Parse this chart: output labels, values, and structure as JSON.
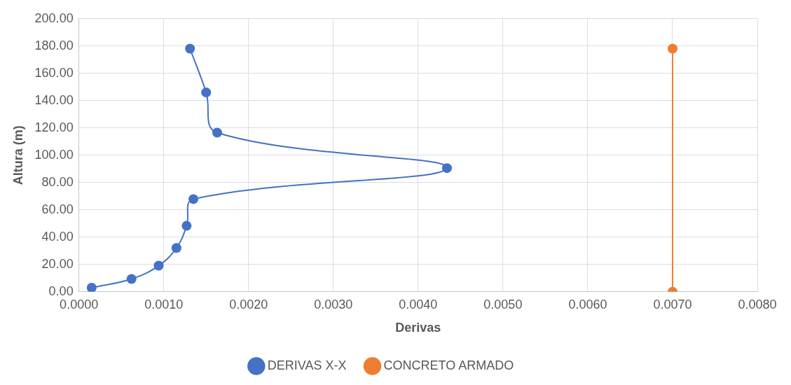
{
  "chart_data": {
    "type": "line",
    "xlabel": "Derivas",
    "ylabel": "Altura (m)",
    "marker": "circle",
    "grid": true,
    "legend": "bottom",
    "xlim": [
      0,
      0.008
    ],
    "xticks": [
      {
        "value": 0,
        "label": "0.0000"
      },
      {
        "value": 0.001,
        "label": "0.0010"
      },
      {
        "value": 0.002,
        "label": "0.0020"
      },
      {
        "value": 0.003,
        "label": "0.0030"
      },
      {
        "value": 0.004,
        "label": "0.0040"
      },
      {
        "value": 0.005,
        "label": "0.0050"
      },
      {
        "value": 0.006,
        "label": "0.0060"
      },
      {
        "value": 0.007,
        "label": "0.0070"
      },
      {
        "value": 0.008,
        "label": "0.0080"
      }
    ],
    "ylim": [
      0,
      200
    ],
    "yticks": [
      {
        "value": 0,
        "label": "0.00"
      },
      {
        "value": 20,
        "label": "20.00"
      },
      {
        "value": 40,
        "label": "40.00"
      },
      {
        "value": 60,
        "label": "60.00"
      },
      {
        "value": 80,
        "label": "80.00"
      },
      {
        "value": 100,
        "label": "100.00"
      },
      {
        "value": 120,
        "label": "120.00"
      },
      {
        "value": 140,
        "label": "140.00"
      },
      {
        "value": 160,
        "label": "160.00"
      },
      {
        "value": 180,
        "label": "180.00"
      },
      {
        "value": 200,
        "label": "200.00"
      }
    ],
    "series": [
      {
        "name": "DERIVAS X-X",
        "color": "#4472c4",
        "x": [
          0.00015,
          0.00062,
          0.00094,
          0.00115,
          0.00127,
          0.00135,
          0.00434,
          0.00163,
          0.0015,
          0.00131
        ],
        "values": [
          3,
          9.4,
          19.1,
          32.1,
          48.3,
          67.9,
          90.6,
          116.6,
          146,
          178.1
        ]
      },
      {
        "name": "CONCRETO ARMADO",
        "color": "#ed7d31",
        "x": [
          0.007,
          0.007
        ],
        "values": [
          0,
          178.1
        ]
      }
    ]
  }
}
